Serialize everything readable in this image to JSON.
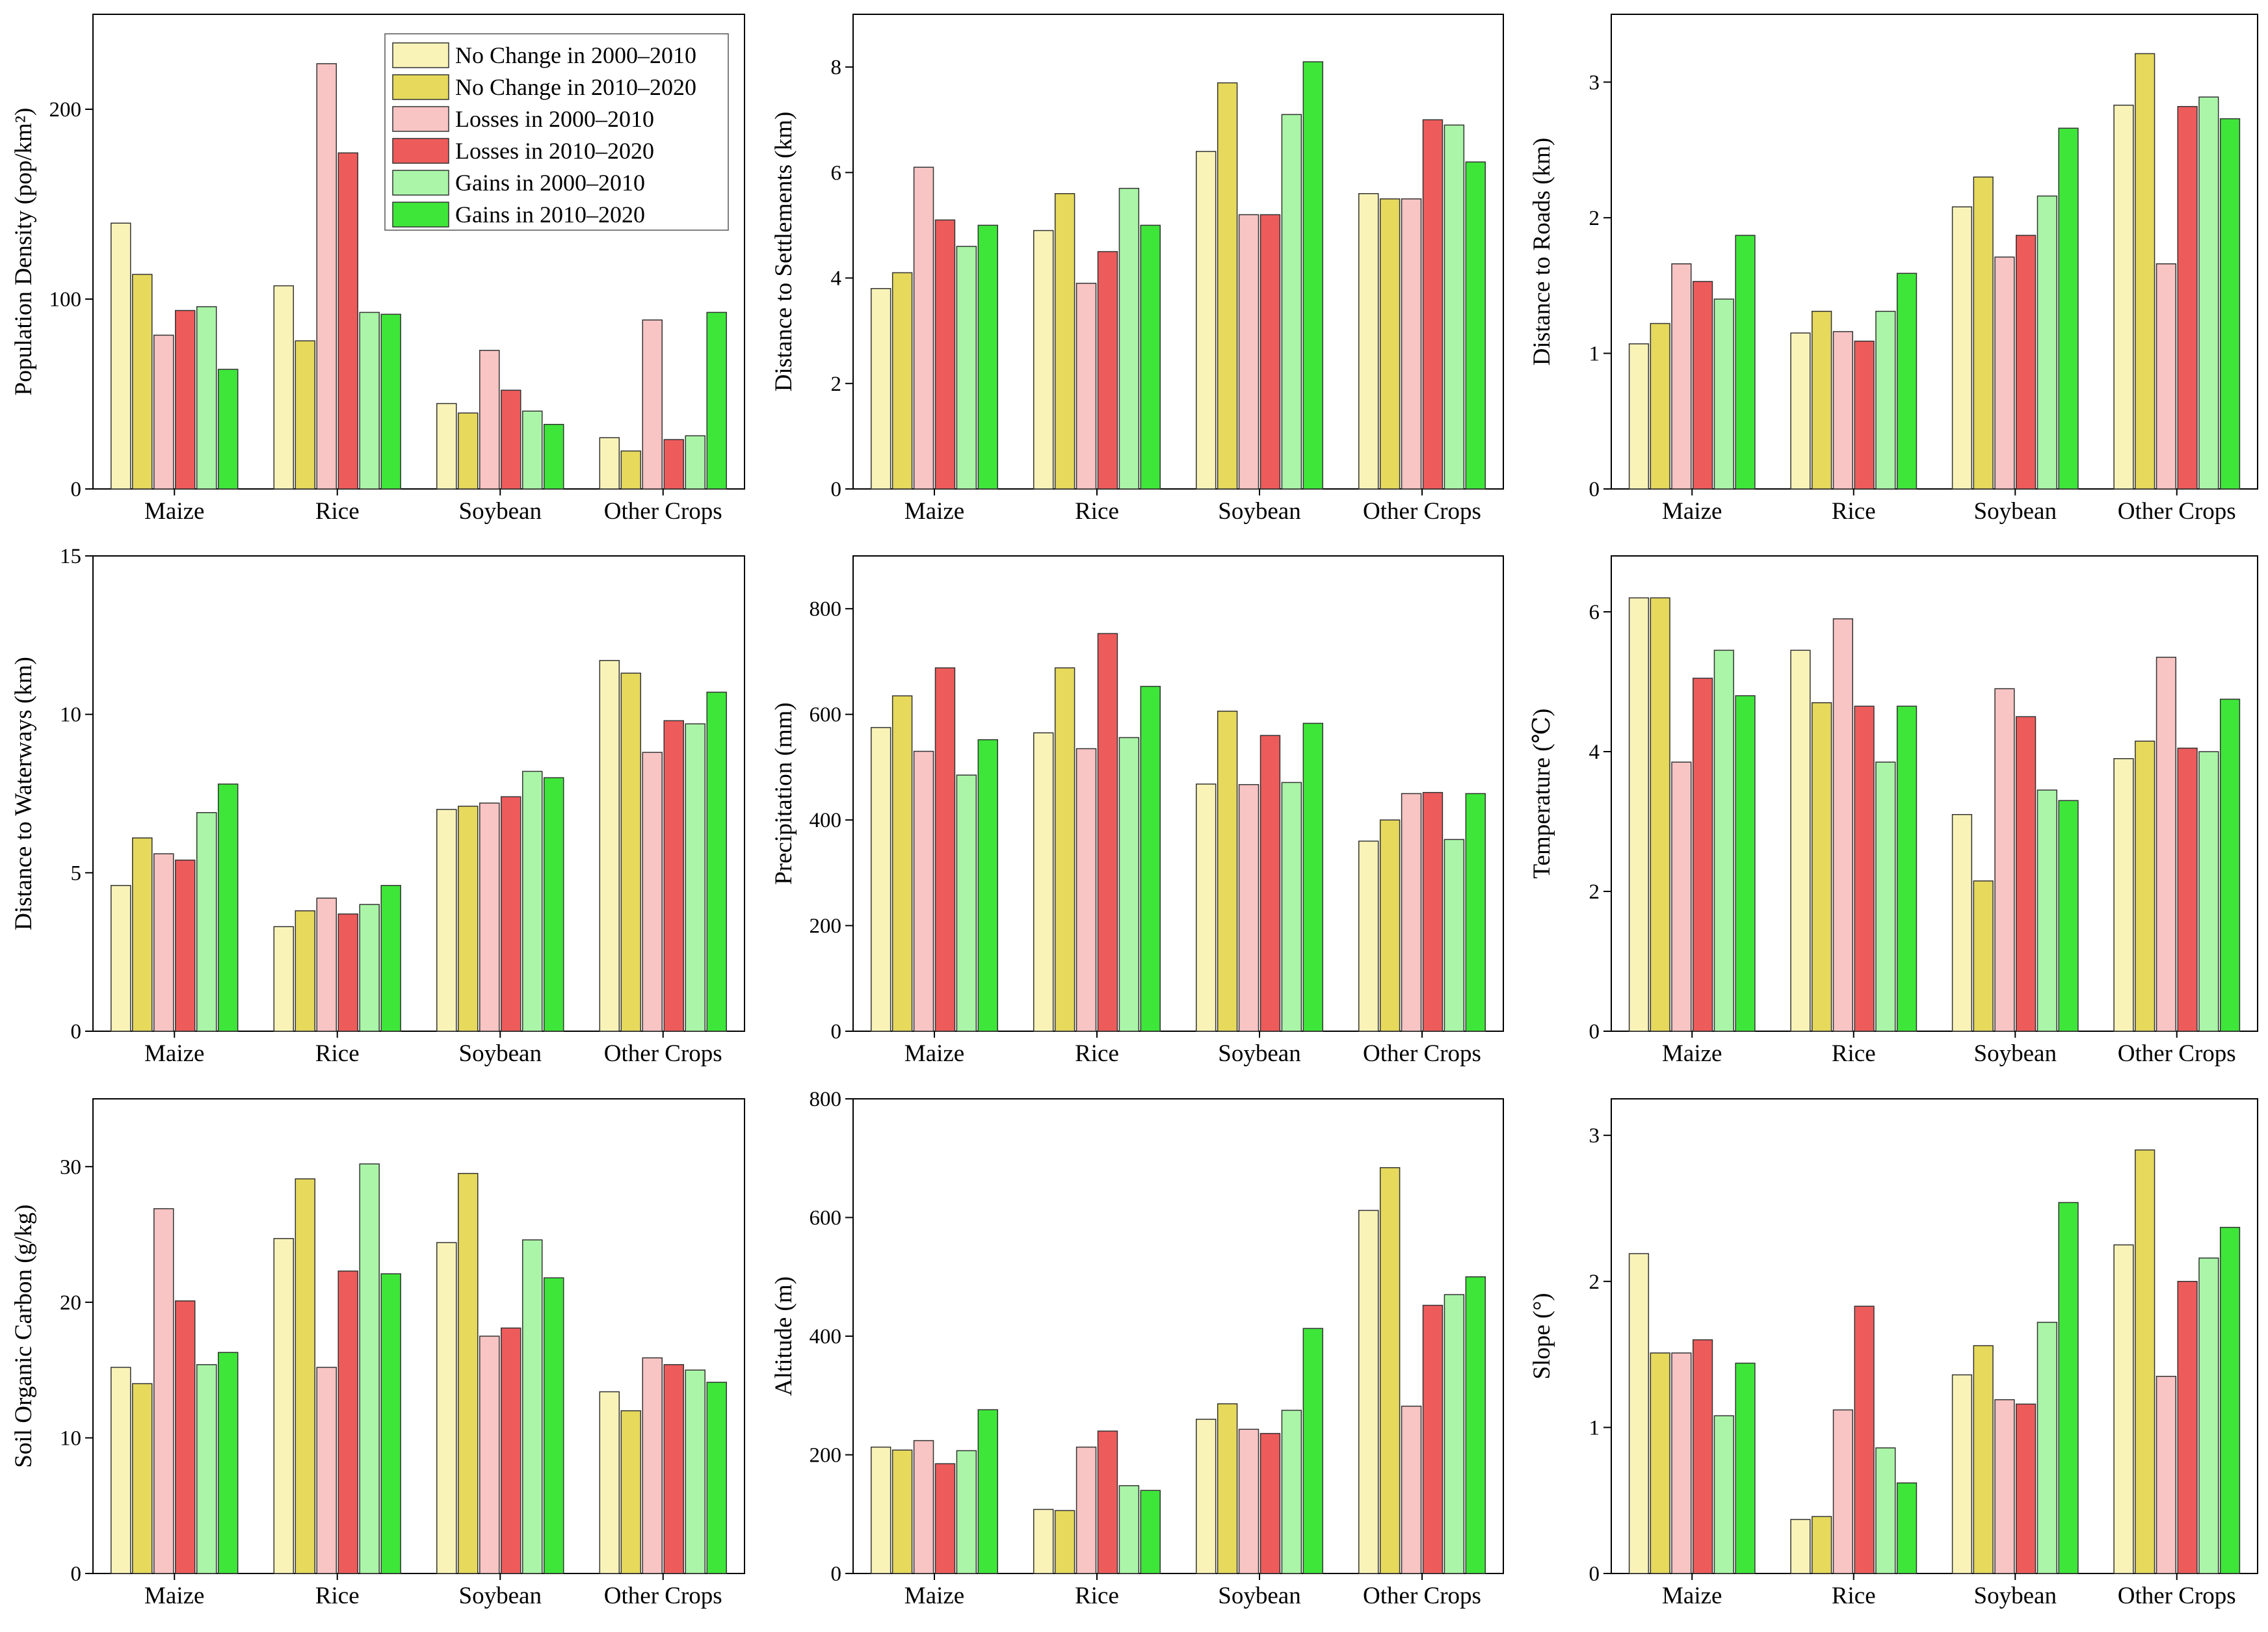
{
  "legend": [
    {
      "label": "No Change in 2000–2010",
      "color": "#f9f3b8"
    },
    {
      "label": "No Change in 2010–2020",
      "color": "#e6d95c"
    },
    {
      "label": "Losses in 2000–2010",
      "color": "#f9c4c4"
    },
    {
      "label": "Losses in 2010–2020",
      "color": "#ee5b5b"
    },
    {
      "label": "Gains in 2000–2010",
      "color": "#aaf5a8"
    },
    {
      "label": "Gains in 2010–2020",
      "color": "#3ee63a"
    }
  ],
  "chart_data": [
    {
      "type": "bar",
      "ylabel": "Population Density (pop/km²)",
      "ylim": [
        0,
        250
      ],
      "yticks": [
        0,
        100,
        200
      ],
      "categories": [
        "Maize",
        "Rice",
        "Soybean",
        "Other Crops"
      ],
      "series": [
        {
          "name": "No Change in 2000–2010",
          "values": [
            140,
            107,
            45,
            27
          ]
        },
        {
          "name": "No Change in 2010–2020",
          "values": [
            113,
            78,
            40,
            20
          ]
        },
        {
          "name": "Losses in 2000–2010",
          "values": [
            81,
            224,
            73,
            89
          ]
        },
        {
          "name": "Losses in 2010–2020",
          "values": [
            94,
            177,
            52,
            26
          ]
        },
        {
          "name": "Gains in 2000–2010",
          "values": [
            96,
            93,
            41,
            28
          ]
        },
        {
          "name": "Gains in 2010–2020",
          "values": [
            63,
            92,
            34,
            93
          ]
        }
      ]
    },
    {
      "type": "bar",
      "ylabel": "Distance to Settlements (km)",
      "ylim": [
        0,
        9
      ],
      "yticks": [
        0,
        2,
        4,
        6,
        8
      ],
      "categories": [
        "Maize",
        "Rice",
        "Soybean",
        "Other Crops"
      ],
      "series": [
        {
          "name": "No Change in 2000–2010",
          "values": [
            3.8,
            4.9,
            6.4,
            5.6
          ]
        },
        {
          "name": "No Change in 2010–2020",
          "values": [
            4.1,
            5.6,
            7.7,
            5.5
          ]
        },
        {
          "name": "Losses in 2000–2010",
          "values": [
            6.1,
            3.9,
            5.2,
            5.5
          ]
        },
        {
          "name": "Losses in 2010–2020",
          "values": [
            5.1,
            4.5,
            5.2,
            7.0
          ]
        },
        {
          "name": "Gains in 2000–2010",
          "values": [
            4.6,
            5.7,
            7.1,
            6.9
          ]
        },
        {
          "name": "Gains in 2010–2020",
          "values": [
            5.0,
            5.0,
            8.1,
            6.2
          ]
        }
      ]
    },
    {
      "type": "bar",
      "ylabel": "Distance to Roads (km)",
      "ylim": [
        0,
        3.5
      ],
      "yticks": [
        0,
        1,
        2,
        3
      ],
      "categories": [
        "Maize",
        "Rice",
        "Soybean",
        "Other Crops"
      ],
      "series": [
        {
          "name": "No Change in 2000–2010",
          "values": [
            1.07,
            1.15,
            2.08,
            2.83
          ]
        },
        {
          "name": "No Change in 2010–2020",
          "values": [
            1.22,
            1.31,
            2.3,
            3.21
          ]
        },
        {
          "name": "Losses in 2000–2010",
          "values": [
            1.66,
            1.16,
            1.71,
            1.66
          ]
        },
        {
          "name": "Losses in 2010–2020",
          "values": [
            1.53,
            1.09,
            1.87,
            2.82
          ]
        },
        {
          "name": "Gains in 2000–2010",
          "values": [
            1.4,
            1.31,
            2.16,
            2.89
          ]
        },
        {
          "name": "Gains in 2010–2020",
          "values": [
            1.87,
            1.59,
            2.66,
            2.73
          ]
        }
      ]
    },
    {
      "type": "bar",
      "ylabel": "Distance to Waterways (km)",
      "ylim": [
        0,
        15
      ],
      "yticks": [
        0,
        5,
        10,
        15
      ],
      "categories": [
        "Maize",
        "Rice",
        "Soybean",
        "Other Crops"
      ],
      "series": [
        {
          "name": "No Change in 2000–2010",
          "values": [
            4.6,
            3.3,
            7.0,
            11.7
          ]
        },
        {
          "name": "No Change in 2010–2020",
          "values": [
            6.1,
            3.8,
            7.1,
            11.3
          ]
        },
        {
          "name": "Losses in 2000–2010",
          "values": [
            5.6,
            4.2,
            7.2,
            8.8
          ]
        },
        {
          "name": "Losses in 2010–2020",
          "values": [
            5.4,
            3.7,
            7.4,
            9.8
          ]
        },
        {
          "name": "Gains in 2000–2010",
          "values": [
            6.9,
            4.0,
            8.2,
            9.7
          ]
        },
        {
          "name": "Gains in 2010–2020",
          "values": [
            7.8,
            4.6,
            8.0,
            10.7
          ]
        }
      ]
    },
    {
      "type": "bar",
      "ylabel": "Precipitation (mm)",
      "ylim": [
        0,
        900
      ],
      "yticks": [
        0,
        200,
        400,
        600,
        800
      ],
      "categories": [
        "Maize",
        "Rice",
        "Soybean",
        "Other Crops"
      ],
      "series": [
        {
          "name": "No Change in 2000–2010",
          "values": [
            575,
            565,
            468,
            360
          ]
        },
        {
          "name": "No Change in 2010–2020",
          "values": [
            635,
            688,
            606,
            400
          ]
        },
        {
          "name": "Losses in 2000–2010",
          "values": [
            530,
            535,
            467,
            450
          ]
        },
        {
          "name": "Losses in 2010–2020",
          "values": [
            688,
            753,
            560,
            452
          ]
        },
        {
          "name": "Gains in 2000–2010",
          "values": [
            485,
            556,
            471,
            363
          ]
        },
        {
          "name": "Gains in 2010–2020",
          "values": [
            552,
            653,
            583,
            450
          ]
        }
      ]
    },
    {
      "type": "bar",
      "ylabel": "Temperature (℃)",
      "ylim": [
        0,
        6.8
      ],
      "yticks": [
        0,
        2,
        4,
        6
      ],
      "categories": [
        "Maize",
        "Rice",
        "Soybean",
        "Other Crops"
      ],
      "series": [
        {
          "name": "No Change in 2000–2010",
          "values": [
            6.2,
            5.45,
            3.1,
            3.9
          ]
        },
        {
          "name": "No Change in 2010–2020",
          "values": [
            6.2,
            4.7,
            2.15,
            4.15
          ]
        },
        {
          "name": "Losses in 2000–2010",
          "values": [
            3.85,
            5.9,
            4.9,
            5.35
          ]
        },
        {
          "name": "Losses in 2010–2020",
          "values": [
            5.05,
            4.65,
            4.5,
            4.05
          ]
        },
        {
          "name": "Gains in 2000–2010",
          "values": [
            5.45,
            3.85,
            3.45,
            4.0
          ]
        },
        {
          "name": "Gains in 2010–2020",
          "values": [
            4.8,
            4.65,
            3.3,
            4.75
          ]
        }
      ]
    },
    {
      "type": "bar",
      "ylabel": "Soil Organic Carbon (g/kg)",
      "ylim": [
        0,
        35
      ],
      "yticks": [
        0,
        10,
        20,
        30
      ],
      "categories": [
        "Maize",
        "Rice",
        "Soybean",
        "Other Crops"
      ],
      "series": [
        {
          "name": "No Change in 2000–2010",
          "values": [
            15.2,
            24.7,
            24.4,
            13.4
          ]
        },
        {
          "name": "No Change in 2010–2020",
          "values": [
            14.0,
            29.1,
            29.5,
            12.0
          ]
        },
        {
          "name": "Losses in 2000–2010",
          "values": [
            26.9,
            15.2,
            17.5,
            15.9
          ]
        },
        {
          "name": "Losses in 2010–2020",
          "values": [
            20.1,
            22.3,
            18.1,
            15.4
          ]
        },
        {
          "name": "Gains in 2000–2010",
          "values": [
            15.4,
            30.2,
            24.6,
            15.0
          ]
        },
        {
          "name": "Gains in 2010–2020",
          "values": [
            16.3,
            22.1,
            21.8,
            14.1
          ]
        }
      ]
    },
    {
      "type": "bar",
      "ylabel": "Altitude (m)",
      "ylim": [
        0,
        800
      ],
      "yticks": [
        0,
        200,
        400,
        600,
        800
      ],
      "categories": [
        "Maize",
        "Rice",
        "Soybean",
        "Other Crops"
      ],
      "series": [
        {
          "name": "No Change in 2000–2010",
          "values": [
            213,
            108,
            260,
            612
          ]
        },
        {
          "name": "No Change in 2010–2020",
          "values": [
            208,
            106,
            286,
            684
          ]
        },
        {
          "name": "Losses in 2000–2010",
          "values": [
            224,
            213,
            243,
            282
          ]
        },
        {
          "name": "Losses in 2010–2020",
          "values": [
            185,
            240,
            236,
            452
          ]
        },
        {
          "name": "Gains in 2000–2010",
          "values": [
            207,
            148,
            275,
            470
          ]
        },
        {
          "name": "Gains in 2010–2020",
          "values": [
            276,
            140,
            413,
            500
          ]
        }
      ]
    },
    {
      "type": "bar",
      "ylabel": "Slope (°)",
      "ylim": [
        0,
        3.25
      ],
      "yticks": [
        0,
        1,
        2,
        3
      ],
      "categories": [
        "Maize",
        "Rice",
        "Soybean",
        "Other Crops"
      ],
      "series": [
        {
          "name": "No Change in 2000–2010",
          "values": [
            2.19,
            0.37,
            1.36,
            2.25
          ]
        },
        {
          "name": "No Change in 2010–2020",
          "values": [
            1.51,
            0.39,
            1.56,
            2.9
          ]
        },
        {
          "name": "Losses in 2000–2010",
          "values": [
            1.51,
            1.12,
            1.19,
            1.35
          ]
        },
        {
          "name": "Losses in 2010–2020",
          "values": [
            1.6,
            1.83,
            1.16,
            2.0
          ]
        },
        {
          "name": "Gains in 2000–2010",
          "values": [
            1.08,
            0.86,
            1.72,
            2.16
          ]
        },
        {
          "name": "Gains in 2010–2020",
          "values": [
            1.44,
            0.62,
            2.54,
            2.37
          ]
        }
      ]
    }
  ]
}
